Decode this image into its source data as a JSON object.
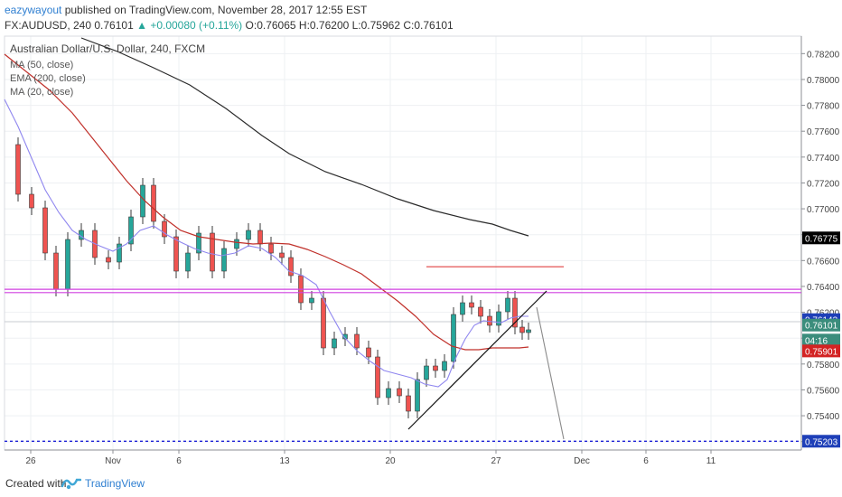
{
  "header": {
    "user": "eazywayout",
    "published": " published on TradingView.com, November 28, 2017 12:55 EST",
    "symbol": "FX:AUDUSD, 240",
    "last": "0.76101",
    "change": "▲ +0.00080 (+0.11%)",
    "ohlc": "O:0.76065 H:0.76200 L:0.75962 C:0.76101"
  },
  "footer": {
    "created_with": "Created with",
    "brand": "TradingView"
  },
  "colors": {
    "up": "#26a69a",
    "down": "#ef5350",
    "ma50": "#c0302a",
    "ema200": "#2a2a2a",
    "ma20": "#8f86ef",
    "purple": "#d040e0",
    "blue_dashed": "#1f22d6",
    "red_line": "#e04040",
    "grid": "#eef0f3"
  },
  "chart_data": {
    "type": "candlestick",
    "legend": {
      "title": "Australian Dollar/U.S. Dollar, 240, FXCM",
      "items": [
        "MA (50, close)",
        "EMA (200, close)",
        "MA (20, close)"
      ]
    },
    "xticks": [
      "26",
      "Nov",
      "6",
      "13",
      "20",
      "27",
      "Dec",
      "6",
      "11"
    ],
    "yticks": [
      "0.78200",
      "0.78000",
      "0.77800",
      "0.77600",
      "0.77400",
      "0.77200",
      "0.77000",
      "0.76800",
      "0.76600",
      "0.76400",
      "0.76200",
      "0.76000",
      "0.75800",
      "0.75600",
      "0.75400",
      "0.75200"
    ],
    "ylim": [
      0.75135,
      0.78335
    ],
    "price_labels": [
      {
        "text": "0.76775",
        "value": 0.76775,
        "style": "black"
      },
      {
        "text": "0.76143",
        "value": 0.76143,
        "style": "blue"
      },
      {
        "text": "0.76101",
        "value": 0.76101,
        "style": "green"
      },
      {
        "text": "04:16",
        "value": 0.75985,
        "style": "green"
      },
      {
        "text": "0.75901",
        "value": 0.75901,
        "style": "red"
      },
      {
        "text": "0.75203",
        "value": 0.75203,
        "style": "blue"
      }
    ],
    "horizontal_levels": [
      {
        "name": "support-top",
        "value": 0.76378,
        "color": "purple"
      },
      {
        "name": "support-bottom",
        "value": 0.76352,
        "color": "purple"
      },
      {
        "name": "target",
        "value": 0.75203,
        "color": "blue_dashed"
      },
      {
        "name": "resistance-short",
        "value": 0.76552,
        "color": "red_line"
      }
    ]
  }
}
